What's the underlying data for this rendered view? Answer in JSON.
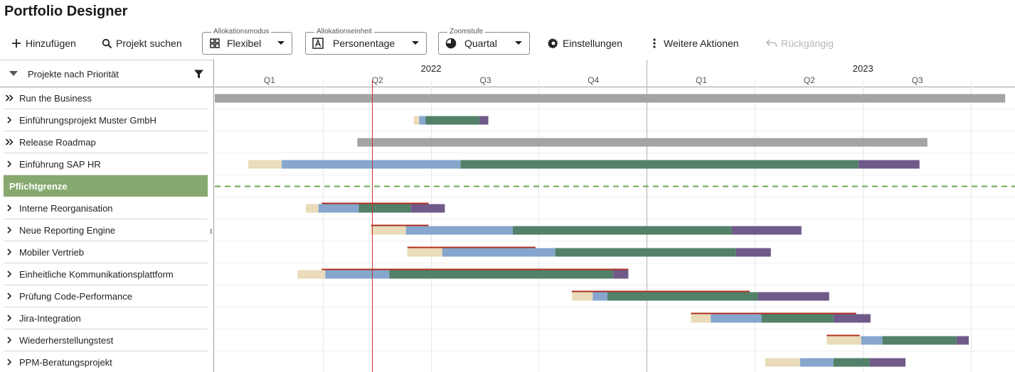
{
  "app": {
    "title": "Portfolio Designer"
  },
  "toolbar": {
    "add_label": "Hinzufügen",
    "search_label": "Projekt suchen",
    "alloc_mode": {
      "caption": "Allokationsmodus",
      "value": "Flexibel"
    },
    "alloc_unit": {
      "caption": "Allokationseinheit",
      "value": "Personentage"
    },
    "zoom": {
      "caption": "Zoomstufe",
      "value": "Quartal"
    },
    "settings_label": "Einstellungen",
    "more_label": "Weitere Aktionen",
    "undo_label": "Rückgängig"
  },
  "left_panel": {
    "header_label": "Projekte nach Priorität",
    "rows": [
      {
        "label": "Run the Business",
        "expand": "double"
      },
      {
        "label": "Einführungsprojekt Muster GmbH",
        "expand": "single"
      },
      {
        "label": "Release Roadmap",
        "expand": "double"
      },
      {
        "label": "Einführung SAP HR",
        "expand": "single"
      },
      {
        "label": "Pflichtgrenze",
        "expand": "none"
      },
      {
        "label": "Interne Reorganisation",
        "expand": "single"
      },
      {
        "label": "Neue Reporting Engine",
        "expand": "single"
      },
      {
        "label": "Mobiler Vertrieb",
        "expand": "single"
      },
      {
        "label": "Einheitliche Kommunikationsplattform",
        "expand": "single"
      },
      {
        "label": "Prüfung Code-Performance",
        "expand": "single"
      },
      {
        "label": "Jira-Integration",
        "expand": "single"
      },
      {
        "label": "Wiederherstellungstest",
        "expand": "single"
      },
      {
        "label": "PPM-Beratungsprojekt",
        "expand": "single"
      }
    ]
  },
  "timeline": {
    "years": [
      {
        "label": "2022",
        "index": 0
      },
      {
        "label": "2023",
        "index": 1
      }
    ],
    "quarters": [
      "Q1",
      "Q2",
      "Q3",
      "Q4",
      "Q1",
      "Q2",
      "Q3"
    ],
    "today_month": 4.37
  },
  "colors": {
    "phase1": "#eadcba",
    "phase2": "#86a6cd",
    "phase3": "#528068",
    "phase4": "#6f5a8a",
    "container": "#a3a3a3",
    "today_line": "#c0392b",
    "deadline": "#b03020",
    "pflicht_bg": "#86a96f",
    "pflicht_line": "#6aa84f"
  },
  "gantt_rows": [
    {
      "type": "container",
      "start": 0.0,
      "end": 21.96
    },
    {
      "type": "phases",
      "phases": [
        5.53,
        5.68,
        5.86,
        7.35,
        7.6
      ]
    },
    {
      "type": "container",
      "start": 3.96,
      "end": 19.8
    },
    {
      "type": "phases",
      "phases": [
        0.93,
        1.86,
        6.83,
        17.88,
        19.58
      ]
    },
    {
      "type": "pflicht"
    },
    {
      "type": "phases",
      "phases": [
        2.53,
        2.88,
        4.0,
        5.45,
        6.39
      ],
      "deadline": [
        2.97,
        5.94
      ]
    },
    {
      "type": "phases",
      "phases": [
        4.34,
        5.31,
        8.28,
        14.36,
        16.3
      ],
      "deadline": [
        4.34,
        5.94
      ]
    },
    {
      "type": "phases",
      "phases": [
        5.35,
        6.32,
        9.46,
        14.48,
        15.45
      ],
      "deadline": [
        5.35,
        8.91
      ]
    },
    {
      "type": "phases",
      "phases": [
        2.3,
        3.07,
        4.85,
        11.07,
        11.49
      ],
      "deadline": [
        2.97,
        11.49
      ]
    },
    {
      "type": "phases",
      "phases": [
        9.92,
        10.5,
        10.91,
        15.09,
        17.07
      ],
      "deadline": [
        9.92,
        14.86
      ]
    },
    {
      "type": "phases",
      "phases": [
        13.23,
        13.78,
        15.19,
        17.19,
        18.22
      ],
      "deadline": [
        13.23,
        17.82
      ]
    },
    {
      "type": "phases",
      "phases": [
        17.0,
        17.96,
        18.55,
        20.61,
        20.95
      ],
      "deadline": [
        17.0,
        17.92
      ]
    },
    {
      "type": "phases",
      "phases": [
        15.29,
        16.26,
        17.19,
        18.2,
        19.19
      ]
    }
  ]
}
